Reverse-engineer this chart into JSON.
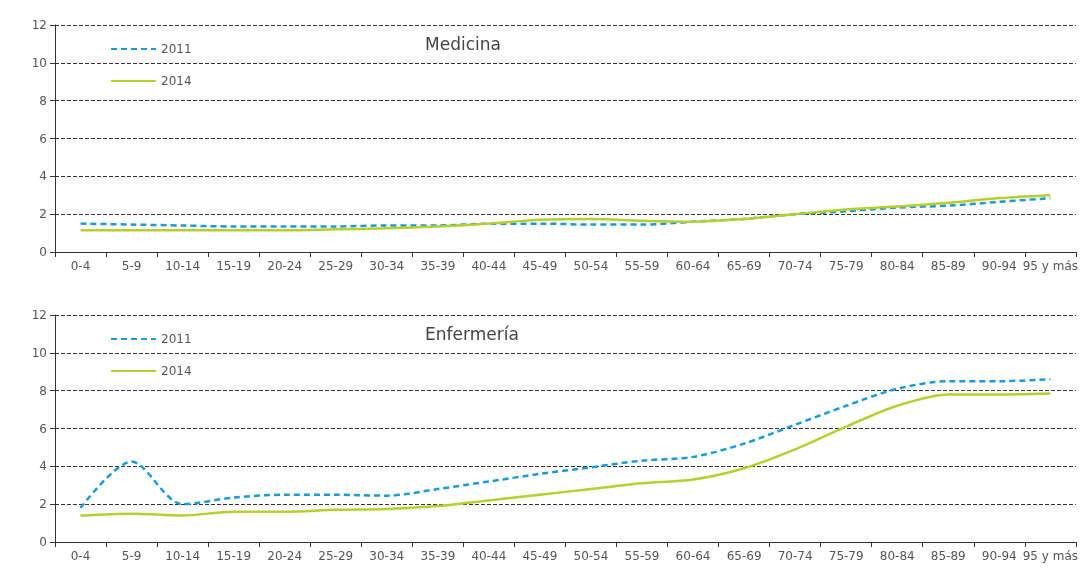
{
  "chart_data": [
    {
      "type": "line",
      "title": "Medicina",
      "categories": [
        "0-4",
        "5-9",
        "10-14",
        "15-19",
        "20-24",
        "25-29",
        "30-34",
        "35-39",
        "40-44",
        "45-49",
        "50-54",
        "55-59",
        "60-64",
        "65-69",
        "70-74",
        "75-79",
        "80-84",
        "85-89",
        "90-94",
        "95 y más"
      ],
      "series": [
        {
          "name": "2011",
          "color": "#1a9ad6",
          "line_style": "dashed",
          "values": [
            1.5,
            1.45,
            1.4,
            1.35,
            1.35,
            1.35,
            1.4,
            1.4,
            1.5,
            1.5,
            1.45,
            1.45,
            1.6,
            1.75,
            2.0,
            2.15,
            2.35,
            2.45,
            2.65,
            2.85
          ]
        },
        {
          "name": "2014",
          "color": "#b5cf2c",
          "line_style": "solid",
          "values": [
            1.15,
            1.15,
            1.15,
            1.15,
            1.15,
            1.2,
            1.25,
            1.35,
            1.5,
            1.7,
            1.75,
            1.65,
            1.6,
            1.75,
            2.0,
            2.25,
            2.4,
            2.6,
            2.85,
            3.0
          ]
        }
      ],
      "ylim": [
        0,
        12
      ],
      "yticks": [
        0,
        2,
        4,
        6,
        8,
        10,
        12
      ],
      "grid": "y",
      "legend": "top left",
      "marker": "none"
    },
    {
      "type": "line",
      "title": "Enfermería",
      "categories": [
        "0-4",
        "5-9",
        "10-14",
        "15-19",
        "20-24",
        "25-29",
        "30-34",
        "35-39",
        "40-44",
        "45-49",
        "50-54",
        "55-59",
        "60-64",
        "65-69",
        "70-74",
        "75-79",
        "80-84",
        "85-89",
        "90-94",
        "95 y más"
      ],
      "series": [
        {
          "name": "2011",
          "color": "#1a9ad6",
          "line_style": "dashed",
          "values": [
            1.8,
            4.25,
            2.0,
            2.35,
            2.5,
            2.5,
            2.45,
            2.8,
            3.2,
            3.6,
            3.95,
            4.3,
            4.5,
            5.2,
            6.2,
            7.2,
            8.1,
            8.5,
            8.5,
            8.6
          ]
        },
        {
          "name": "2014",
          "color": "#b5cf2c",
          "line_style": "solid",
          "values": [
            1.4,
            1.5,
            1.4,
            1.6,
            1.6,
            1.7,
            1.75,
            1.9,
            2.2,
            2.5,
            2.8,
            3.1,
            3.3,
            3.9,
            4.9,
            6.1,
            7.2,
            7.8,
            7.8,
            7.85
          ]
        }
      ],
      "ylim": [
        0,
        12
      ],
      "yticks": [
        0,
        2,
        4,
        6,
        8,
        10,
        12
      ],
      "grid": "y",
      "legend": "top left",
      "marker": "none"
    }
  ]
}
